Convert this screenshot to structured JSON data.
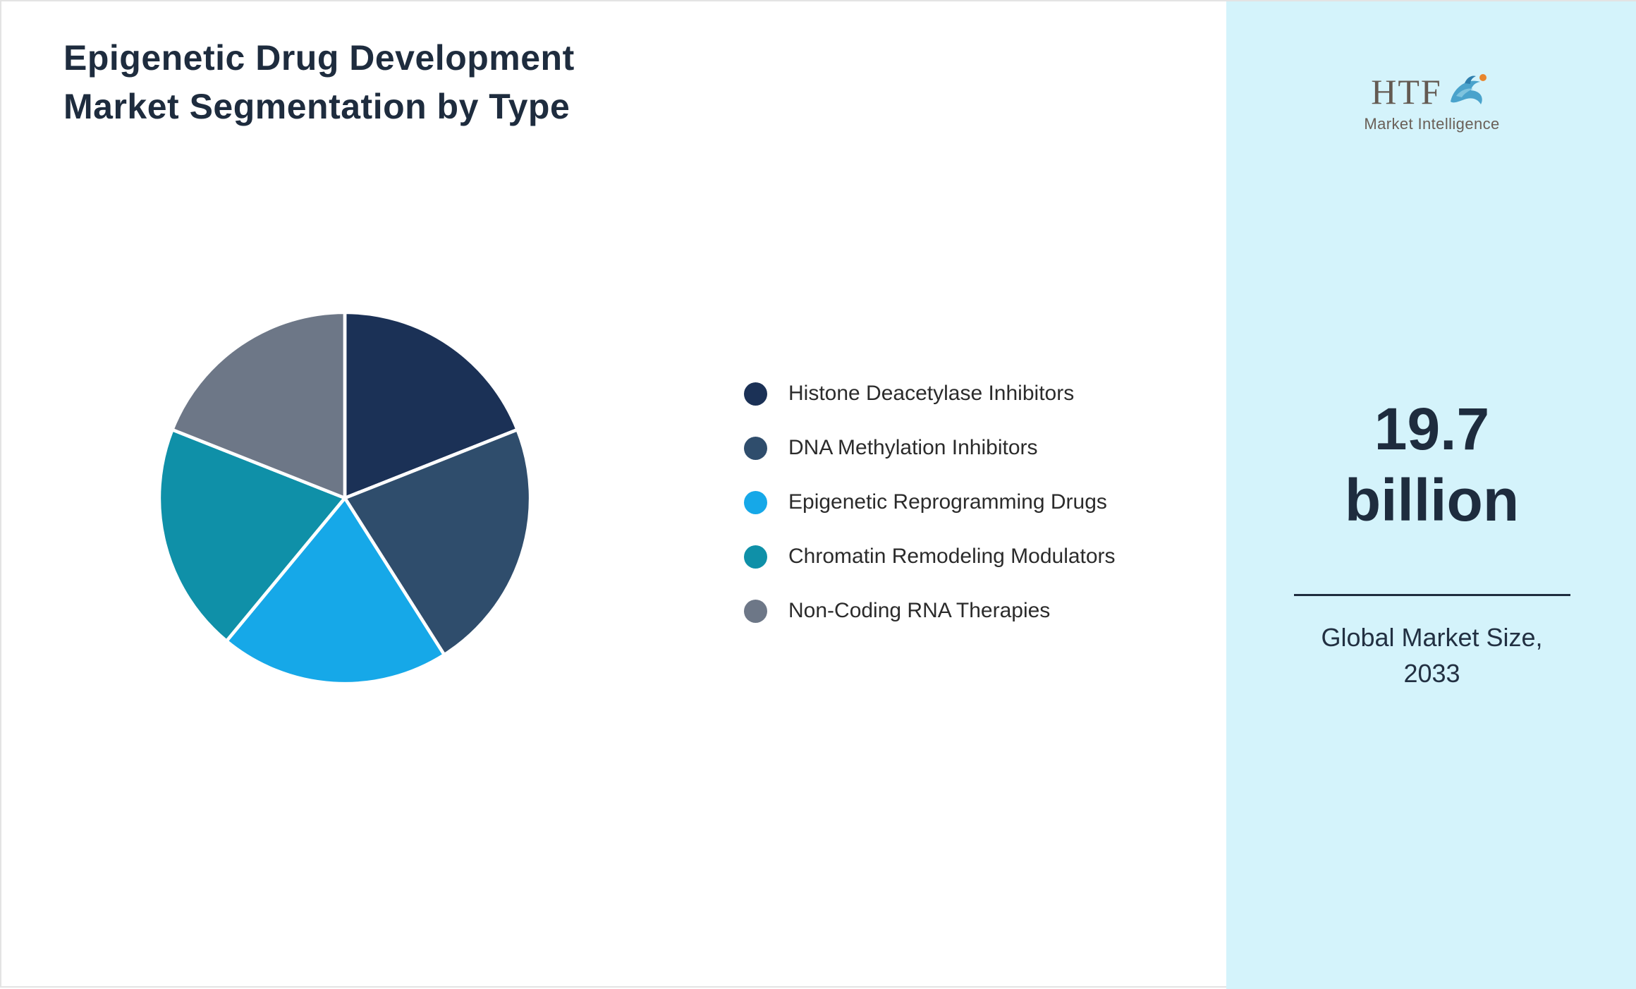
{
  "page": {
    "background": "#ffffff",
    "border_color": "#e3e3e3"
  },
  "header": {
    "title_line1": "Epigenetic Drug Development",
    "title_line2": "Market Segmentation by Type"
  },
  "chart_data": {
    "type": "pie",
    "title": "Epigenetic Drug Development Market Segmentation by Type",
    "labels": [
      "Histone Deacetylase Inhibitors",
      "DNA Methylation Inhibitors",
      "Epigenetic Reprogramming Drugs",
      "Chromatin Remodeling Modulators",
      "Non-Coding RNA Therapies"
    ],
    "values": [
      19,
      22,
      20,
      20,
      19
    ],
    "colors": [
      "#1b3156",
      "#2f4d6c",
      "#16a8e8",
      "#0f90a8",
      "#6d7787"
    ],
    "start_angle_deg": 0,
    "direction": "clockwise",
    "slice_stroke": "#ffffff",
    "legend_position": "right"
  },
  "sidebar": {
    "background": "#d4f3fb",
    "logo": {
      "text": "HTF",
      "subtext": "Market Intelligence",
      "icon": "dolphin-icon",
      "text_color": "#645a52",
      "icon_color": "#4aa3cc",
      "icon_accent_color": "#e8862e"
    },
    "value_line1": "19.7",
    "value_line2": "billion",
    "caption_line1": "Global Market Size,",
    "caption_line2": "2033",
    "value_color": "#1e2c3e"
  }
}
